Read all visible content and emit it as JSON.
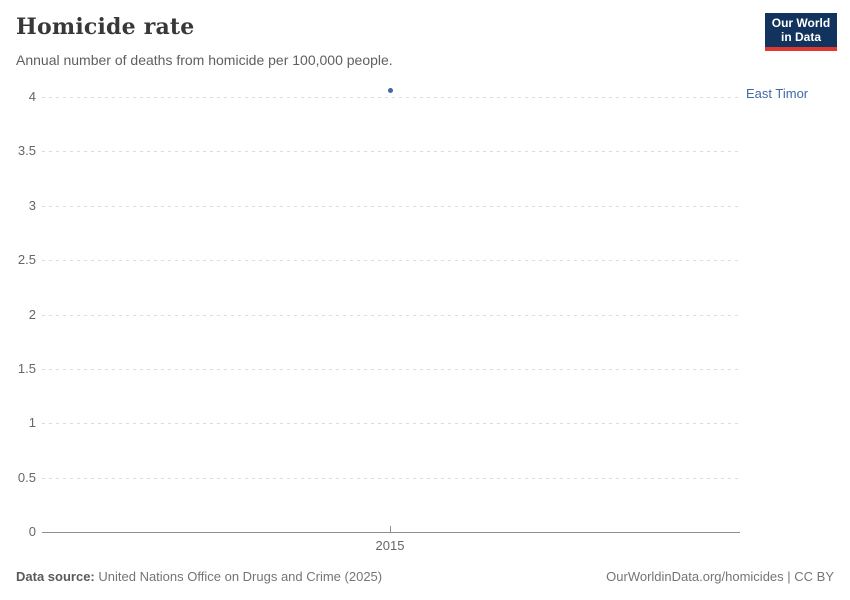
{
  "header": {
    "title": "Homicide rate",
    "subtitle": "Annual number of deaths from homicide per 100,000 people."
  },
  "logo": {
    "line1": "Our World",
    "line2": "in Data",
    "bg_color": "#12335d",
    "accent_color": "#e0372e"
  },
  "chart_data": {
    "type": "scatter",
    "title": "Homicide rate",
    "subtitle": "Annual number of deaths from homicide per 100,000 people.",
    "series": [
      {
        "name": "East Timor",
        "color": "#4268a9",
        "points": [
          {
            "x": 2015,
            "y": 4.06
          }
        ]
      }
    ],
    "xticks": [
      2015
    ],
    "xtick_labels": [
      "2015"
    ],
    "yticks": [
      0,
      0.5,
      1,
      1.5,
      2,
      2.5,
      3,
      3.5,
      4
    ],
    "ytick_labels": [
      "0",
      "0.5",
      "1",
      "1.5",
      "2",
      "2.5",
      "3",
      "3.5",
      "4"
    ],
    "ylim": [
      0,
      4
    ],
    "xlabel": "",
    "ylabel": "",
    "grid": "horizontal-dashed",
    "legend_position": "right-entity-label",
    "gridline_color": "#dddddd",
    "axis_color": "#8f8f8f"
  },
  "footer": {
    "source_label": "Data source:",
    "source": "United Nations Office on Drugs and Crime (2025)",
    "right": "OurWorldinData.org/homicides | CC BY"
  }
}
